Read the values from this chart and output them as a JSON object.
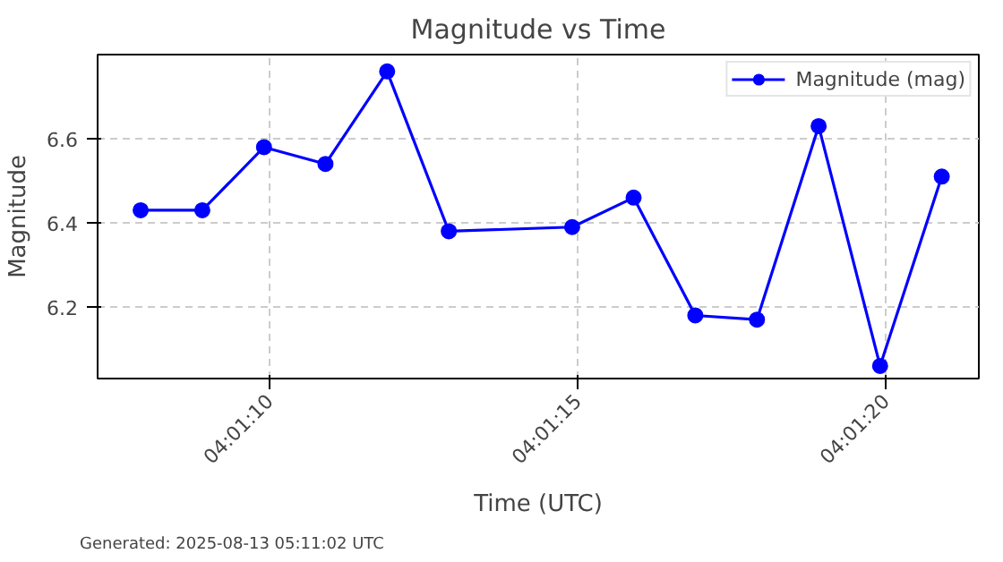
{
  "chart_data": {
    "type": "line",
    "title": "Magnitude vs Time",
    "xlabel": "Time (UTC)",
    "ylabel": "Magnitude",
    "x": [
      4.018861,
      4.019139,
      4.019417,
      4.019694,
      4.019972,
      4.02025,
      4.020806,
      4.021083,
      4.021361,
      4.021639,
      4.021917,
      4.022194,
      4.022472
    ],
    "series": [
      {
        "name": "Magnitude (mag)",
        "color": "#0000ff",
        "values": [
          6.43,
          6.43,
          6.58,
          6.54,
          6.76,
          6.38,
          6.39,
          6.46,
          6.18,
          6.17,
          6.63,
          6.06,
          6.51
        ]
      }
    ],
    "xlim": [
      4.018667,
      4.022639
    ],
    "xticks": [
      {
        "value": 4.019444,
        "label": "04:01:10"
      },
      {
        "value": 4.020833,
        "label": "04:01:15"
      },
      {
        "value": 4.022222,
        "label": "04:01:20"
      }
    ],
    "ylim": [
      6.03,
      6.8
    ],
    "yticks": [
      {
        "value": 6.2,
        "label": "6.2"
      },
      {
        "value": 6.4,
        "label": "6.4"
      },
      {
        "value": 6.6,
        "label": "6.6"
      }
    ],
    "grid": true,
    "legend": "top right",
    "marker": "circle",
    "line_style": "solid",
    "annotations": [
      "Generated: 2025-08-13 05:11:02 UTC"
    ]
  }
}
